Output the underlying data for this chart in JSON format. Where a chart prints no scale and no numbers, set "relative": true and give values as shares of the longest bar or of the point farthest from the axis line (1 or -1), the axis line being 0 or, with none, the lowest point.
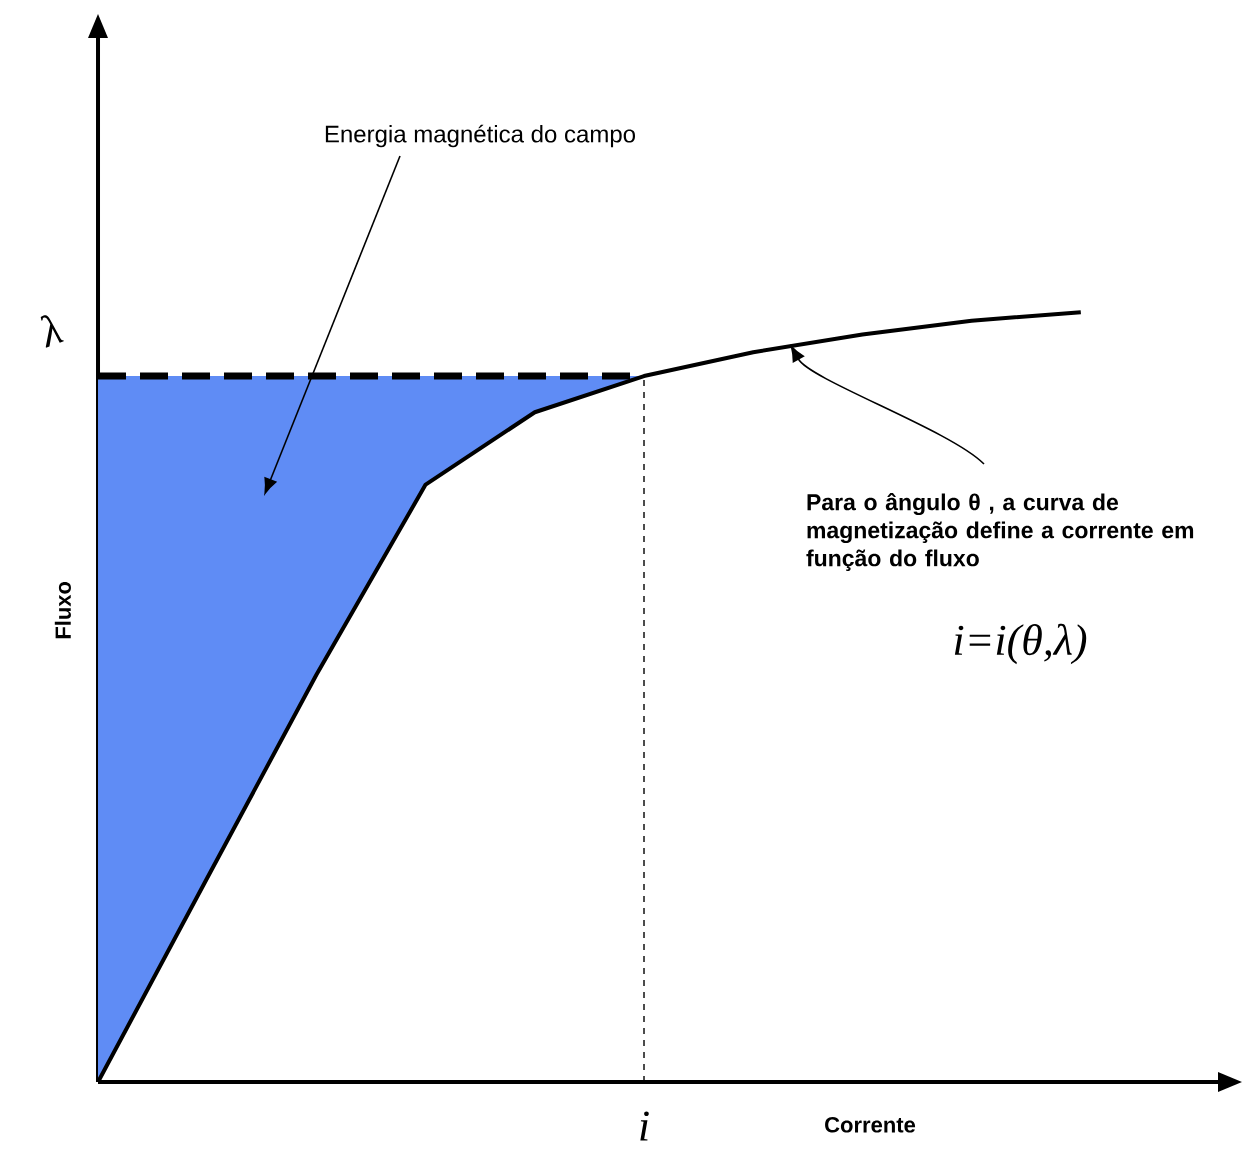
{
  "chart_data": {
    "type": "line",
    "relative": true,
    "xlabel": "Corrente",
    "ylabel": "Fluxo",
    "categories": [
      null,
      null,
      null,
      null,
      null,
      null,
      null,
      null,
      null,
      null
    ],
    "series": [
      {
        "color": "#000000",
        "values": [
          0,
          0.265,
          0.529,
          0.776,
          0.87,
          0.917,
          0.948,
          0.971,
          0.989,
          1
        ],
        "lower": [
          0,
          0.265,
          0.529,
          0.776,
          0.87,
          0.917,
          null,
          null,
          null,
          null
        ],
        "upper": [
          0.917,
          0.917,
          0.917,
          0.917,
          0.917,
          0.917,
          null,
          null,
          null,
          null
        ]
      }
    ],
    "ref_lines": [
      {
        "axis": "y",
        "value": 0.917,
        "label": "λ",
        "line_style": "dashed"
      }
    ],
    "annotations": [
      "Energia magnética do campo",
      "Para o ângulo θ , a curva de magnetização define a corrente em função do fluxo",
      "i=i(θ,λ)",
      "i"
    ]
  }
}
